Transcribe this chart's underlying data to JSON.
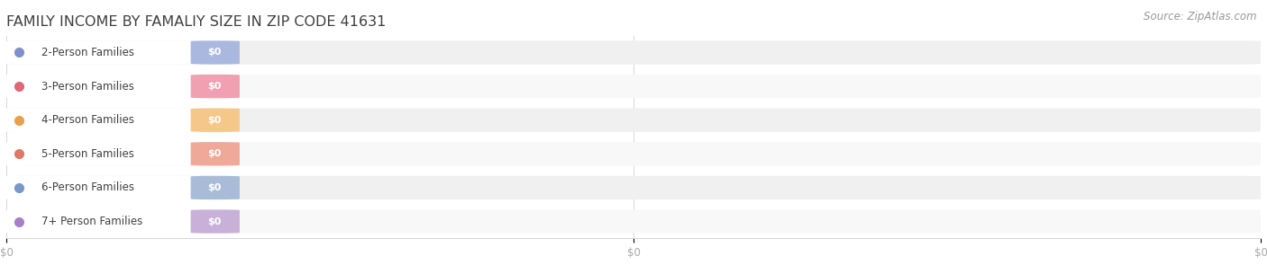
{
  "title": "FAMILY INCOME BY FAMALIY SIZE IN ZIP CODE 41631",
  "source_text": "Source: ZipAtlas.com",
  "categories": [
    "2-Person Families",
    "3-Person Families",
    "4-Person Families",
    "5-Person Families",
    "6-Person Families",
    "7+ Person Families"
  ],
  "values": [
    0,
    0,
    0,
    0,
    0,
    0
  ],
  "bar_colors": [
    "#aab8e0",
    "#f0a0b0",
    "#f5c88a",
    "#f0a898",
    "#a8bcd8",
    "#c8b0d8"
  ],
  "dot_colors": [
    "#8090c8",
    "#e06878",
    "#e8a050",
    "#e07868",
    "#7898c8",
    "#a880c8"
  ],
  "value_label": "$0",
  "bg_color": "#ffffff",
  "bar_bg_color": "#f0f0f0",
  "bar_bg_color2": "#f8f8f8",
  "title_color": "#404040",
  "source_color": "#999999",
  "tick_label_color": "#aaaaaa",
  "xlim": [
    0,
    1
  ],
  "title_fontsize": 11.5,
  "label_fontsize": 8.5,
  "source_fontsize": 8.5,
  "tick_fontsize": 8.5
}
